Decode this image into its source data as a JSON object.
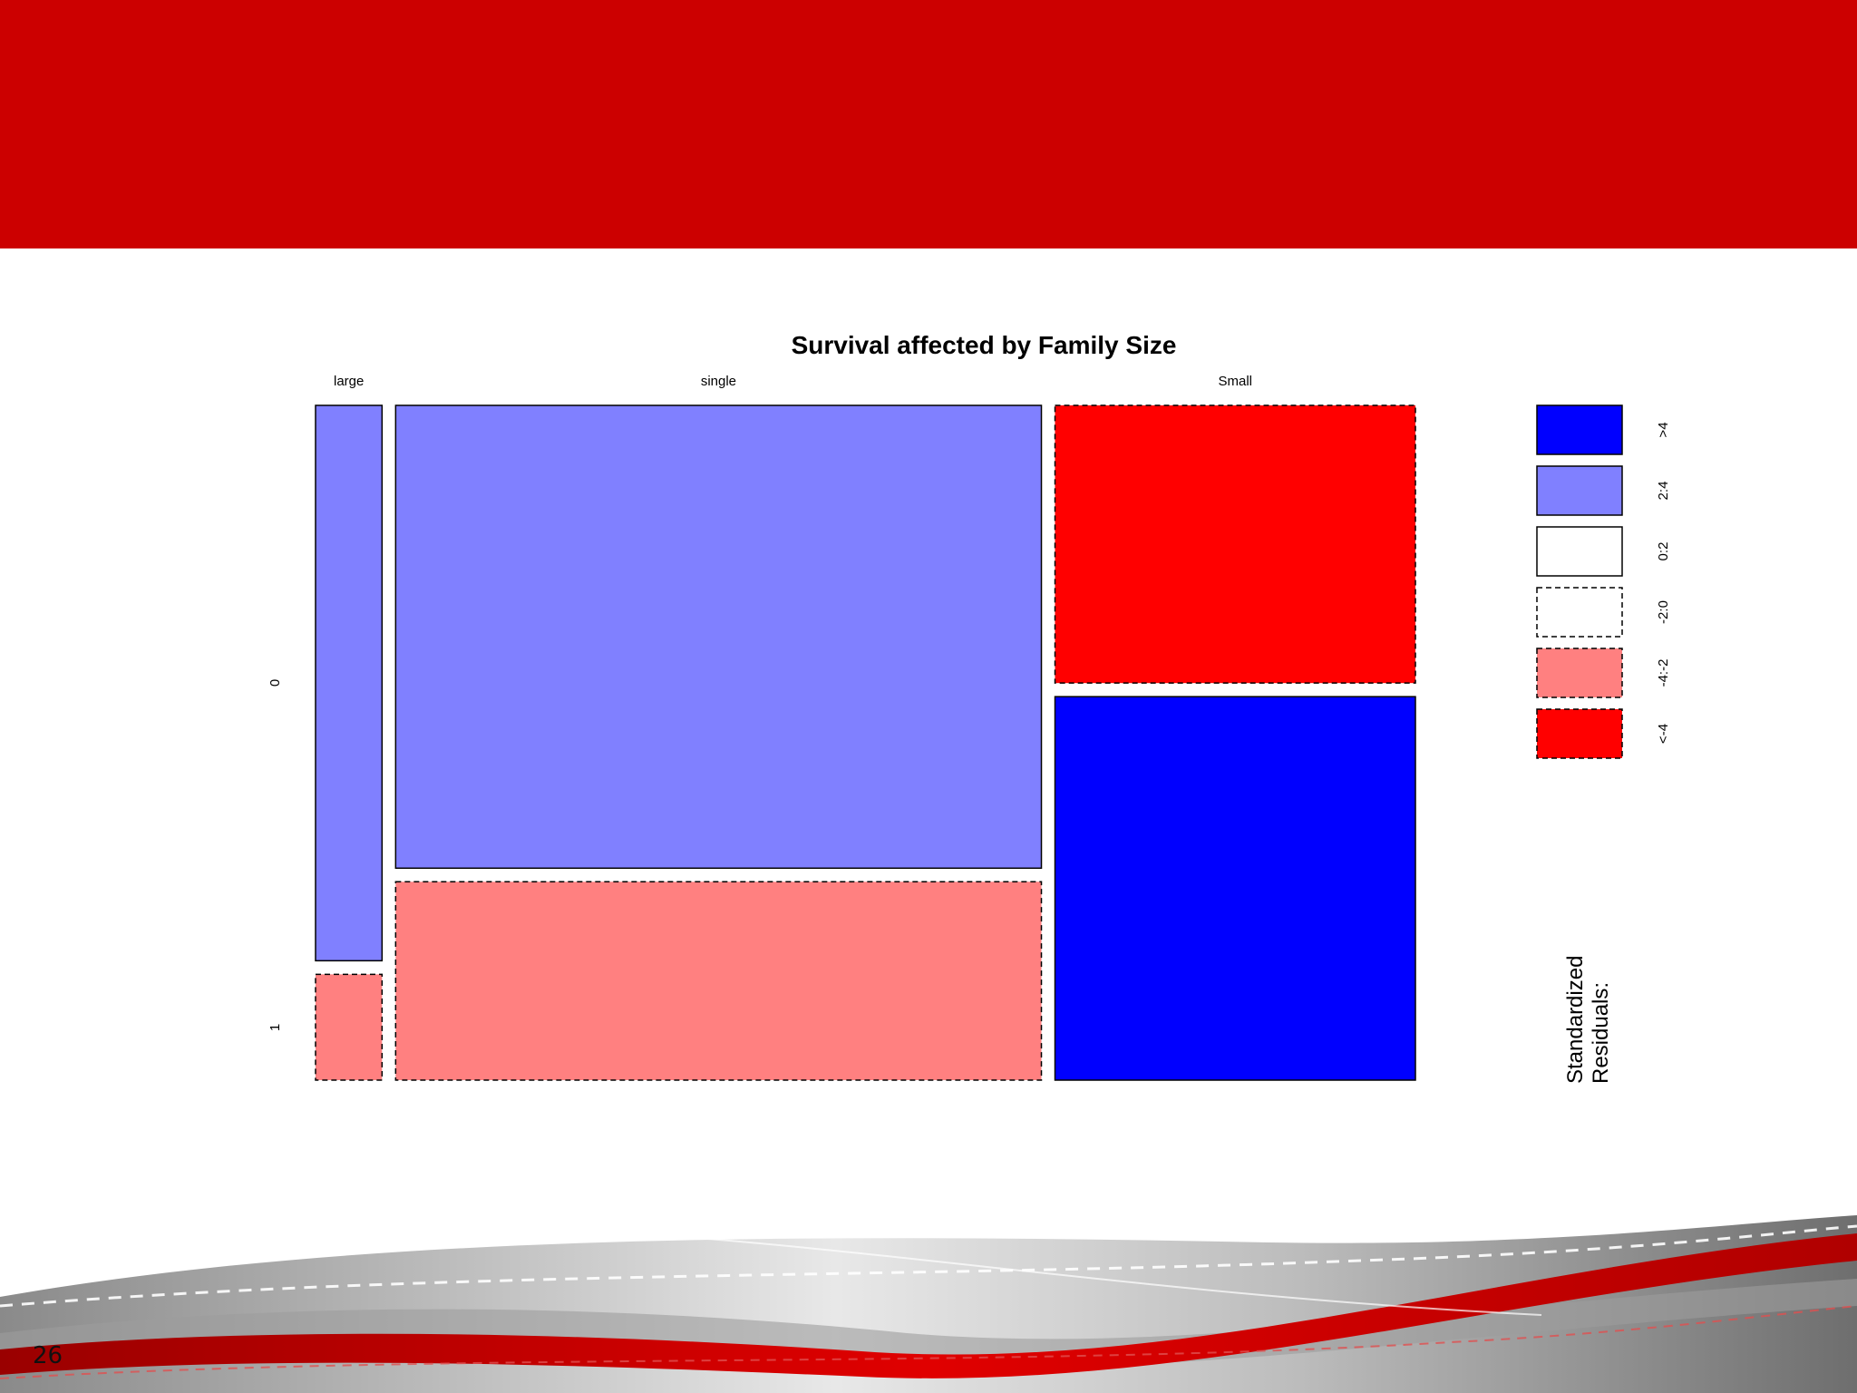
{
  "slide": {
    "number": "26"
  },
  "chart_data": {
    "type": "mosaic",
    "title": "Survival affected by Family Size",
    "column_variable_levels": [
      "large",
      "single",
      "Small"
    ],
    "row_variable_levels": [
      "0",
      "1"
    ],
    "column_proportions": [
      0.062,
      0.602,
      0.336
    ],
    "cells": [
      {
        "column": "large",
        "row": "0",
        "proportion_in_column": 0.84,
        "residual_band": "2:4",
        "fill": "#8080ff",
        "dashed": false
      },
      {
        "column": "large",
        "row": "1",
        "proportion_in_column": 0.16,
        "residual_band": "-4:-2",
        "fill": "#ff8080",
        "dashed": true
      },
      {
        "column": "single",
        "row": "0",
        "proportion_in_column": 0.7,
        "residual_band": "2:4",
        "fill": "#8080ff",
        "dashed": false
      },
      {
        "column": "single",
        "row": "1",
        "proportion_in_column": 0.3,
        "residual_band": "-4:-2",
        "fill": "#ff8080",
        "dashed": true
      },
      {
        "column": "Small",
        "row": "0",
        "proportion_in_column": 0.42,
        "residual_band": "<-4",
        "fill": "#ff0000",
        "dashed": true
      },
      {
        "column": "Small",
        "row": "1",
        "proportion_in_column": 0.58,
        "residual_band": ">4",
        "fill": "#0000ff",
        "dashed": false
      }
    ],
    "legend": {
      "title": "Standardized Residuals:",
      "entries": [
        {
          "label": ">4",
          "fill": "#0000ff",
          "dashed": false
        },
        {
          "label": "2:4",
          "fill": "#8080ff",
          "dashed": false
        },
        {
          "label": "0:2",
          "fill": "#ffffff",
          "dashed": false
        },
        {
          "label": "-2:0",
          "fill": "#ffffff",
          "dashed": true
        },
        {
          "label": "-4:-2",
          "fill": "#ff8080",
          "dashed": true
        },
        {
          "label": "<-4",
          "fill": "#ff0000",
          "dashed": true
        }
      ],
      "placement": "right"
    }
  },
  "colors": {
    "header_band": "#cc0000",
    "accent_red": "#d40000"
  }
}
